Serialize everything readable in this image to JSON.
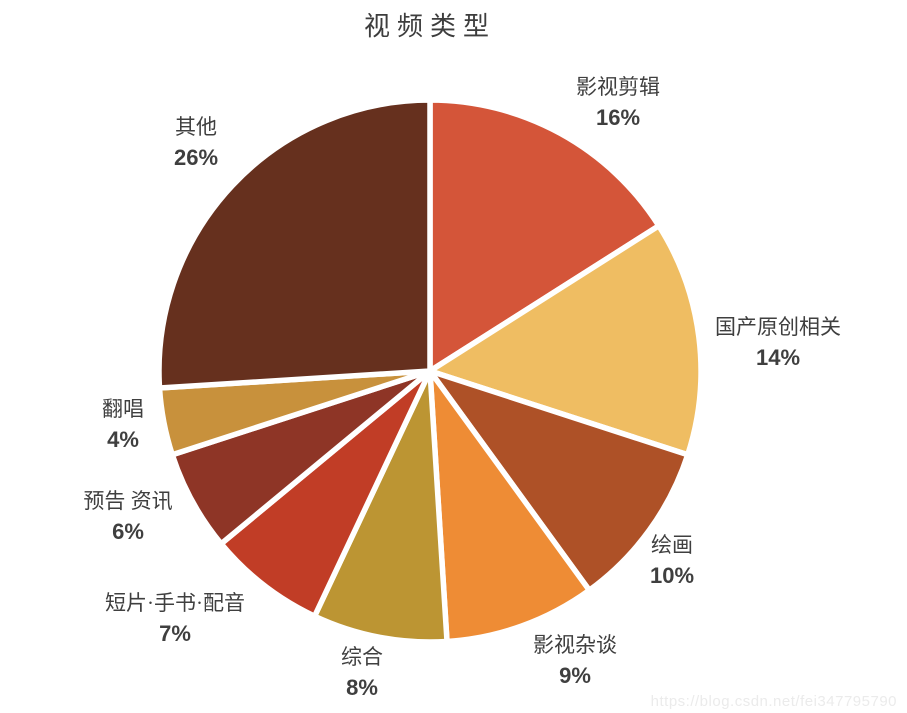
{
  "header": {
    "title": "视频类型"
  },
  "chart_data": {
    "type": "pie",
    "title": "视频类型",
    "unit": "%",
    "start_angle_deg": 0,
    "direction": "clockwise",
    "legend": "none",
    "label_text_color": "#3f3f3f",
    "slice_border_color": "#ffffff",
    "slices": [
      {
        "label": "影视剪辑",
        "value": 16,
        "pct_label": "16%",
        "color": "#d45539"
      },
      {
        "label": "国产原创相关",
        "value": 14,
        "pct_label": "14%",
        "color": "#efbd62"
      },
      {
        "label": "绘画",
        "value": 10,
        "pct_label": "10%",
        "color": "#ae5127"
      },
      {
        "label": "影视杂谈",
        "value": 9,
        "pct_label": "9%",
        "color": "#ee8c35"
      },
      {
        "label": "综合",
        "value": 8,
        "pct_label": "8%",
        "color": "#bc9533"
      },
      {
        "label": "短片·手书·配音",
        "value": 7,
        "pct_label": "7%",
        "color": "#c13d26"
      },
      {
        "label": "预告 资讯",
        "value": 6,
        "pct_label": "6%",
        "color": "#8e3526"
      },
      {
        "label": "翻唱",
        "value": 4,
        "pct_label": "4%",
        "color": "#c8913c"
      },
      {
        "label": "其他",
        "value": 26,
        "pct_label": "26%",
        "color": "#66301e"
      }
    ]
  },
  "watermark": {
    "text": "https://blog.csdn.net/fei347795790",
    "color": "#ebebeb"
  }
}
